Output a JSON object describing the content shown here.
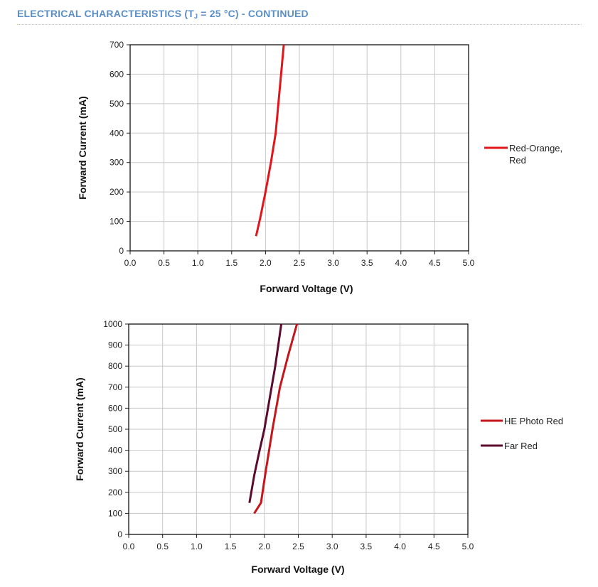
{
  "header": {
    "title_main": "ELECTRICAL CHARACTERISTICS (T",
    "title_sub": "J",
    "title_end": " = 25 °C) - CONTINUED"
  },
  "colors": {
    "header": "#5b8fc7",
    "header_rule": "#e3c75a",
    "grid": "#c8c8c8"
  },
  "chart_data": [
    {
      "type": "line",
      "title": "",
      "xlabel": "Forward Voltage (V)",
      "ylabel": "Forward Current (mA)",
      "xlim": [
        0,
        5
      ],
      "ylim": [
        0,
        700
      ],
      "xticks": [
        "0.0",
        "0.5",
        "1.0",
        "1.5",
        "2.0",
        "2.5",
        "3.0",
        "3.5",
        "4.0",
        "4.5",
        "5.0"
      ],
      "yticks": [
        "0",
        "100",
        "200",
        "300",
        "400",
        "500",
        "600",
        "700"
      ],
      "grid": true,
      "legend_position": "right",
      "series": [
        {
          "name": "Red-Orange,\nRed",
          "name_lines": [
            "Red-Orange,",
            "Red"
          ],
          "color": "#e0161b",
          "x": [
            1.86,
            1.92,
            2.0,
            2.08,
            2.15,
            2.21,
            2.27
          ],
          "y": [
            50,
            110,
            200,
            300,
            400,
            550,
            700
          ]
        }
      ]
    },
    {
      "type": "line",
      "title": "",
      "xlabel": "Forward Voltage (V)",
      "ylabel": "Forward Current (mA)",
      "xlim": [
        0,
        5
      ],
      "ylim": [
        0,
        1000
      ],
      "xticks": [
        "0.0",
        "0.5",
        "1.0",
        "1.5",
        "2.0",
        "2.5",
        "3.0",
        "3.5",
        "4.0",
        "4.5",
        "5.0"
      ],
      "yticks": [
        "0",
        "100",
        "200",
        "300",
        "400",
        "500",
        "600",
        "700",
        "800",
        "900",
        "1000"
      ],
      "grid": true,
      "legend_position": "right",
      "series": [
        {
          "name": "HE Photo Red",
          "name_lines": [
            "HE Photo Red"
          ],
          "color": "#c4161c",
          "x": [
            1.85,
            1.95,
            2.02,
            2.12,
            2.23,
            2.35,
            2.48
          ],
          "y": [
            100,
            150,
            300,
            500,
            700,
            850,
            1000
          ]
        },
        {
          "name": "Far Red",
          "name_lines": [
            "Far Red"
          ],
          "color": "#5c0a2e",
          "x": [
            1.78,
            1.85,
            1.93,
            2.0,
            2.08,
            2.16,
            2.25
          ],
          "y": [
            150,
            280,
            400,
            500,
            650,
            800,
            1000
          ]
        }
      ]
    }
  ]
}
